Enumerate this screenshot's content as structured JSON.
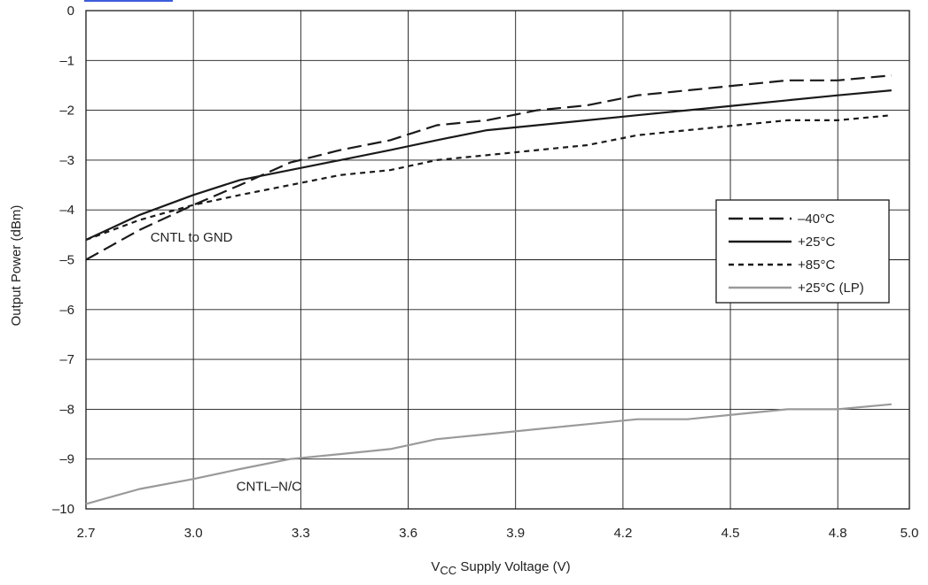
{
  "colors": {
    "ink": "#1a1a1a",
    "lp_series": "#9a9a9a",
    "grid": "#1a1a1a",
    "link": "#3b5bdb"
  },
  "chart_data": {
    "type": "line",
    "title": "",
    "xlabel_prefix": "V",
    "xlabel_sub": "CC",
    "xlabel_rest": " Supply Voltage (V)",
    "ylabel": "Output Power (dBm)",
    "xlim": [
      2.7,
      5.0
    ],
    "ylim": [
      -10,
      0
    ],
    "x_ticks": [
      "2.7",
      "3.0",
      "3.3",
      "3.6",
      "3.9",
      "4.2",
      "4.5",
      "4.8",
      "5.0"
    ],
    "x_tick_values": [
      2.7,
      3.0,
      3.3,
      3.6,
      3.9,
      4.2,
      4.5,
      4.8,
      5.0
    ],
    "y_ticks": [
      "0",
      "–1",
      "–2",
      "–3",
      "–4",
      "–5",
      "–6",
      "–7",
      "–8",
      "–9",
      "–10"
    ],
    "y_tick_values": [
      0,
      -1,
      -2,
      -3,
      -4,
      -5,
      -6,
      -7,
      -8,
      -9,
      -10
    ],
    "grid": true,
    "legend_position": "right",
    "series": [
      {
        "name": "–40°C",
        "style": "long-dash",
        "color": "#1a1a1a",
        "points": [
          [
            2.7,
            -5.0
          ],
          [
            2.85,
            -4.4
          ],
          [
            3.0,
            -3.9
          ],
          [
            3.13,
            -3.5
          ],
          [
            3.27,
            -3.05
          ],
          [
            3.41,
            -2.8
          ],
          [
            3.55,
            -2.6
          ],
          [
            3.68,
            -2.3
          ],
          [
            3.82,
            -2.2
          ],
          [
            3.96,
            -2.0
          ],
          [
            4.1,
            -1.9
          ],
          [
            4.24,
            -1.7
          ],
          [
            4.38,
            -1.6
          ],
          [
            4.52,
            -1.5
          ],
          [
            4.66,
            -1.4
          ],
          [
            4.8,
            -1.4
          ],
          [
            4.95,
            -1.3
          ]
        ]
      },
      {
        "name": "+25°C",
        "style": "solid",
        "color": "#1a1a1a",
        "points": [
          [
            2.7,
            -4.6
          ],
          [
            2.85,
            -4.1
          ],
          [
            3.0,
            -3.7
          ],
          [
            3.13,
            -3.4
          ],
          [
            3.27,
            -3.2
          ],
          [
            3.41,
            -3.0
          ],
          [
            3.55,
            -2.8
          ],
          [
            3.68,
            -2.6
          ],
          [
            3.82,
            -2.4
          ],
          [
            3.96,
            -2.3
          ],
          [
            4.1,
            -2.2
          ],
          [
            4.24,
            -2.1
          ],
          [
            4.38,
            -2.0
          ],
          [
            4.52,
            -1.9
          ],
          [
            4.66,
            -1.8
          ],
          [
            4.8,
            -1.7
          ],
          [
            4.95,
            -1.6
          ]
        ]
      },
      {
        "name": "+85°C",
        "style": "short-dash",
        "color": "#1a1a1a",
        "points": [
          [
            2.7,
            -4.6
          ],
          [
            2.85,
            -4.2
          ],
          [
            3.0,
            -3.9
          ],
          [
            3.13,
            -3.7
          ],
          [
            3.27,
            -3.5
          ],
          [
            3.41,
            -3.3
          ],
          [
            3.55,
            -3.2
          ],
          [
            3.68,
            -3.0
          ],
          [
            3.82,
            -2.9
          ],
          [
            3.96,
            -2.8
          ],
          [
            4.1,
            -2.7
          ],
          [
            4.24,
            -2.5
          ],
          [
            4.38,
            -2.4
          ],
          [
            4.52,
            -2.3
          ],
          [
            4.66,
            -2.2
          ],
          [
            4.8,
            -2.2
          ],
          [
            4.95,
            -2.1
          ]
        ]
      },
      {
        "name": "+25°C (LP)",
        "style": "solid",
        "color": "#9a9a9a",
        "points": [
          [
            2.7,
            -9.9
          ],
          [
            2.85,
            -9.6
          ],
          [
            3.0,
            -9.4
          ],
          [
            3.13,
            -9.2
          ],
          [
            3.27,
            -9.0
          ],
          [
            3.41,
            -8.9
          ],
          [
            3.55,
            -8.8
          ],
          [
            3.68,
            -8.6
          ],
          [
            3.82,
            -8.5
          ],
          [
            3.96,
            -8.4
          ],
          [
            4.1,
            -8.3
          ],
          [
            4.24,
            -8.2
          ],
          [
            4.38,
            -8.2
          ],
          [
            4.52,
            -8.1
          ],
          [
            4.66,
            -8.0
          ],
          [
            4.8,
            -8.0
          ],
          [
            4.95,
            -7.9
          ]
        ]
      }
    ],
    "annotations": [
      {
        "text": "CNTL to GND",
        "x": 2.88,
        "y": -4.55
      },
      {
        "text": "CNTL–N/C",
        "x": 3.12,
        "y": -9.55
      }
    ]
  }
}
